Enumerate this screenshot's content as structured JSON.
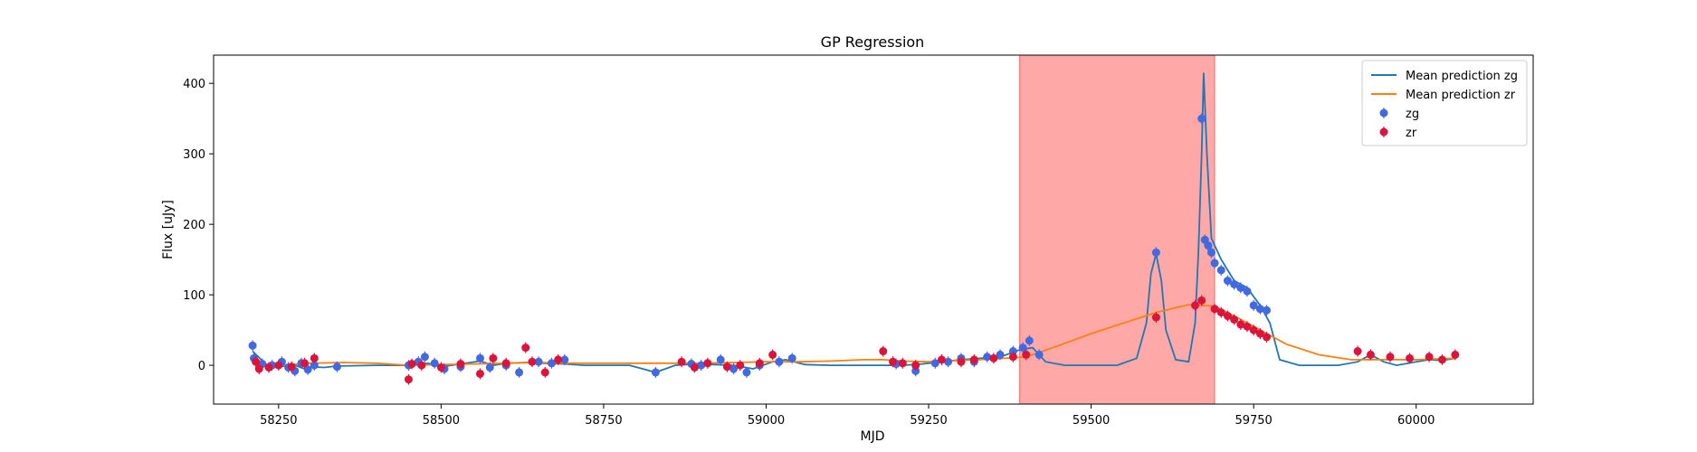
{
  "chart_data": {
    "type": "line",
    "title": "GP Regression",
    "xlabel": "MJD",
    "ylabel": "Flux [uJy]",
    "xlim": [
      58150,
      60180
    ],
    "ylim": [
      -55,
      440
    ],
    "xticks": [
      58250,
      58500,
      58750,
      59000,
      59250,
      59500,
      59750,
      60000
    ],
    "yticks": [
      0,
      100,
      200,
      300,
      400
    ],
    "grid": false,
    "legend_position": "top-right",
    "shaded_region": {
      "x0": 59390,
      "x1": 59690,
      "color": "#ff0000",
      "alpha": 0.34
    },
    "colors": {
      "mean_zg": "#1f77b4",
      "mean_zr": "#ff7f0e",
      "points_zg": "#4169e1",
      "points_zr": "#dc143c"
    },
    "series": [
      {
        "name": "Mean prediction zg",
        "kind": "line",
        "color": "#1f77b4",
        "x": [
          58210,
          58230,
          58250,
          58270,
          58290,
          58300,
          58320,
          58340,
          58400,
          58450,
          58480,
          58500,
          58530,
          58560,
          58580,
          58600,
          58630,
          58660,
          58690,
          58720,
          58790,
          58830,
          58860,
          58890,
          58920,
          58950,
          58980,
          59010,
          59030,
          59060,
          59100,
          59170,
          59210,
          59240,
          59270,
          59300,
          59330,
          59360,
          59390,
          59410,
          59430,
          59460,
          59500,
          59540,
          59570,
          59585,
          59592,
          59600,
          59608,
          59615,
          59630,
          59650,
          59660,
          59665,
          59670,
          59673,
          59678,
          59685,
          59700,
          59720,
          59740,
          59760,
          59775,
          59790,
          59820,
          59880,
          59910,
          59930,
          59950,
          59970,
          60000,
          60020,
          60040,
          60060
        ],
        "y": [
          20,
          2,
          -3,
          2,
          -5,
          -2,
          -3,
          -1,
          0,
          0,
          3,
          -2,
          2,
          6,
          0,
          3,
          4,
          3,
          2,
          0,
          0,
          -10,
          0,
          2,
          1,
          0,
          -5,
          5,
          8,
          1,
          0,
          0,
          0,
          2,
          5,
          8,
          10,
          12,
          22,
          25,
          5,
          0,
          0,
          0,
          10,
          60,
          130,
          158,
          120,
          50,
          8,
          5,
          60,
          160,
          300,
          415,
          300,
          180,
          150,
          120,
          110,
          85,
          60,
          8,
          0,
          0,
          5,
          15,
          5,
          0,
          5,
          8,
          7,
          10
        ]
      },
      {
        "name": "Mean prediction zr",
        "kind": "line",
        "color": "#ff7f0e",
        "x": [
          58210,
          58250,
          58300,
          58350,
          58400,
          58450,
          58500,
          58550,
          58600,
          58650,
          58700,
          58750,
          58800,
          58850,
          58900,
          58950,
          59000,
          59050,
          59100,
          59150,
          59180,
          59210,
          59250,
          59300,
          59350,
          59400,
          59450,
          59500,
          59550,
          59600,
          59650,
          59690,
          59720,
          59760,
          59800,
          59850,
          59900,
          59950,
          60000,
          60060
        ],
        "y": [
          3,
          0,
          3,
          4,
          3,
          0,
          1,
          2,
          3,
          4,
          3,
          3,
          3,
          3,
          3,
          4,
          5,
          5,
          6,
          8,
          8,
          6,
          5,
          7,
          9,
          12,
          28,
          45,
          60,
          75,
          86,
          84,
          70,
          50,
          30,
          15,
          8,
          8,
          8,
          10
        ]
      },
      {
        "name": "zg",
        "kind": "scatter",
        "color": "#4169e1",
        "points": [
          [
            58210,
            28
          ],
          [
            58212,
            10
          ],
          [
            58225,
            2
          ],
          [
            58240,
            0
          ],
          [
            58255,
            5
          ],
          [
            58265,
            -3
          ],
          [
            58275,
            -8
          ],
          [
            58285,
            3
          ],
          [
            58295,
            -6
          ],
          [
            58305,
            0
          ],
          [
            58340,
            -2
          ],
          [
            58450,
            0
          ],
          [
            58465,
            5
          ],
          [
            58475,
            12
          ],
          [
            58490,
            3
          ],
          [
            58505,
            -5
          ],
          [
            58530,
            -2
          ],
          [
            58560,
            10
          ],
          [
            58575,
            -3
          ],
          [
            58600,
            0
          ],
          [
            58620,
            -10
          ],
          [
            58650,
            5
          ],
          [
            58670,
            3
          ],
          [
            58690,
            8
          ],
          [
            58830,
            -10
          ],
          [
            58885,
            2
          ],
          [
            58900,
            0
          ],
          [
            58930,
            8
          ],
          [
            58950,
            -5
          ],
          [
            58970,
            -10
          ],
          [
            58990,
            0
          ],
          [
            59020,
            5
          ],
          [
            59040,
            10
          ],
          [
            59200,
            2
          ],
          [
            59230,
            -8
          ],
          [
            59260,
            3
          ],
          [
            59280,
            5
          ],
          [
            59300,
            10
          ],
          [
            59320,
            5
          ],
          [
            59340,
            12
          ],
          [
            59360,
            15
          ],
          [
            59380,
            20
          ],
          [
            59395,
            25
          ],
          [
            59405,
            35
          ],
          [
            59420,
            15
          ],
          [
            59600,
            160
          ],
          [
            59670,
            350
          ],
          [
            59675,
            178
          ],
          [
            59680,
            170
          ],
          [
            59685,
            160
          ],
          [
            59690,
            145
          ],
          [
            59700,
            135
          ],
          [
            59710,
            120
          ],
          [
            59720,
            115
          ],
          [
            59730,
            110
          ],
          [
            59740,
            105
          ],
          [
            59750,
            85
          ],
          [
            59760,
            80
          ],
          [
            59770,
            78
          ]
        ]
      },
      {
        "name": "zr",
        "kind": "scatter",
        "color": "#dc143c",
        "points": [
          [
            58215,
            5
          ],
          [
            58220,
            -5
          ],
          [
            58235,
            -3
          ],
          [
            58250,
            0
          ],
          [
            58270,
            -2
          ],
          [
            58290,
            3
          ],
          [
            58305,
            10
          ],
          [
            58450,
            -20
          ],
          [
            58455,
            2
          ],
          [
            58470,
            0
          ],
          [
            58500,
            -3
          ],
          [
            58530,
            2
          ],
          [
            58560,
            -12
          ],
          [
            58580,
            10
          ],
          [
            58600,
            3
          ],
          [
            58630,
            25
          ],
          [
            58640,
            5
          ],
          [
            58660,
            -10
          ],
          [
            58680,
            8
          ],
          [
            58870,
            5
          ],
          [
            58890,
            -3
          ],
          [
            58910,
            3
          ],
          [
            58940,
            -2
          ],
          [
            58960,
            0
          ],
          [
            58990,
            3
          ],
          [
            59010,
            15
          ],
          [
            59180,
            20
          ],
          [
            59195,
            5
          ],
          [
            59210,
            3
          ],
          [
            59230,
            0
          ],
          [
            59270,
            8
          ],
          [
            59300,
            5
          ],
          [
            59320,
            8
          ],
          [
            59350,
            10
          ],
          [
            59380,
            12
          ],
          [
            59400,
            15
          ],
          [
            59600,
            68
          ],
          [
            59660,
            85
          ],
          [
            59670,
            92
          ],
          [
            59690,
            80
          ],
          [
            59700,
            75
          ],
          [
            59710,
            70
          ],
          [
            59720,
            65
          ],
          [
            59730,
            58
          ],
          [
            59740,
            55
          ],
          [
            59750,
            50
          ],
          [
            59760,
            45
          ],
          [
            59770,
            40
          ],
          [
            59910,
            20
          ],
          [
            59930,
            15
          ],
          [
            59960,
            12
          ],
          [
            59990,
            10
          ],
          [
            60020,
            12
          ],
          [
            60040,
            8
          ],
          [
            60060,
            15
          ]
        ]
      }
    ],
    "legend": [
      {
        "label": "Mean prediction zg",
        "kind": "line",
        "color": "#1f77b4"
      },
      {
        "label": "Mean prediction zr",
        "kind": "line",
        "color": "#ff7f0e"
      },
      {
        "label": "zg",
        "kind": "errorbar",
        "color": "#4169e1"
      },
      {
        "label": "zr",
        "kind": "errorbar",
        "color": "#dc143c"
      }
    ]
  }
}
